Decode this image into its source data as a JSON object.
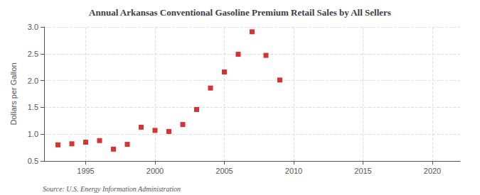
{
  "chart_data": {
    "type": "scatter",
    "title": "Annual Arkansas Conventional Gasoline Premium Retail Sales by All Sellers",
    "ylabel": "Dollars per Gallon",
    "annotations": [
      "Source: U.S. Energy Information Administration"
    ],
    "x": [
      1993,
      1994,
      1995,
      1996,
      1997,
      1998,
      1999,
      2000,
      2001,
      2002,
      2003,
      2004,
      2005,
      2006,
      2007,
      2008,
      2009
    ],
    "values": [
      0.8,
      0.82,
      0.85,
      0.88,
      0.72,
      0.81,
      1.13,
      1.07,
      1.05,
      1.18,
      1.46,
      1.86,
      2.16,
      2.49,
      2.91,
      2.47,
      2.01
    ],
    "color": "#cc0000",
    "marker": "square",
    "xlim": [
      1992,
      2022
    ],
    "xticks": [
      1995,
      2000,
      2005,
      2010,
      2015,
      2020
    ],
    "ylim": [
      0.5,
      3.0
    ],
    "yticks": [
      0.5,
      {
        "value": 1.0,
        "label": "1.0"
      },
      1.5,
      {
        "value": 2.0,
        "label": "2.0"
      },
      2.5,
      {
        "value": 3.0,
        "label": "3.0"
      }
    ],
    "grid": true
  }
}
